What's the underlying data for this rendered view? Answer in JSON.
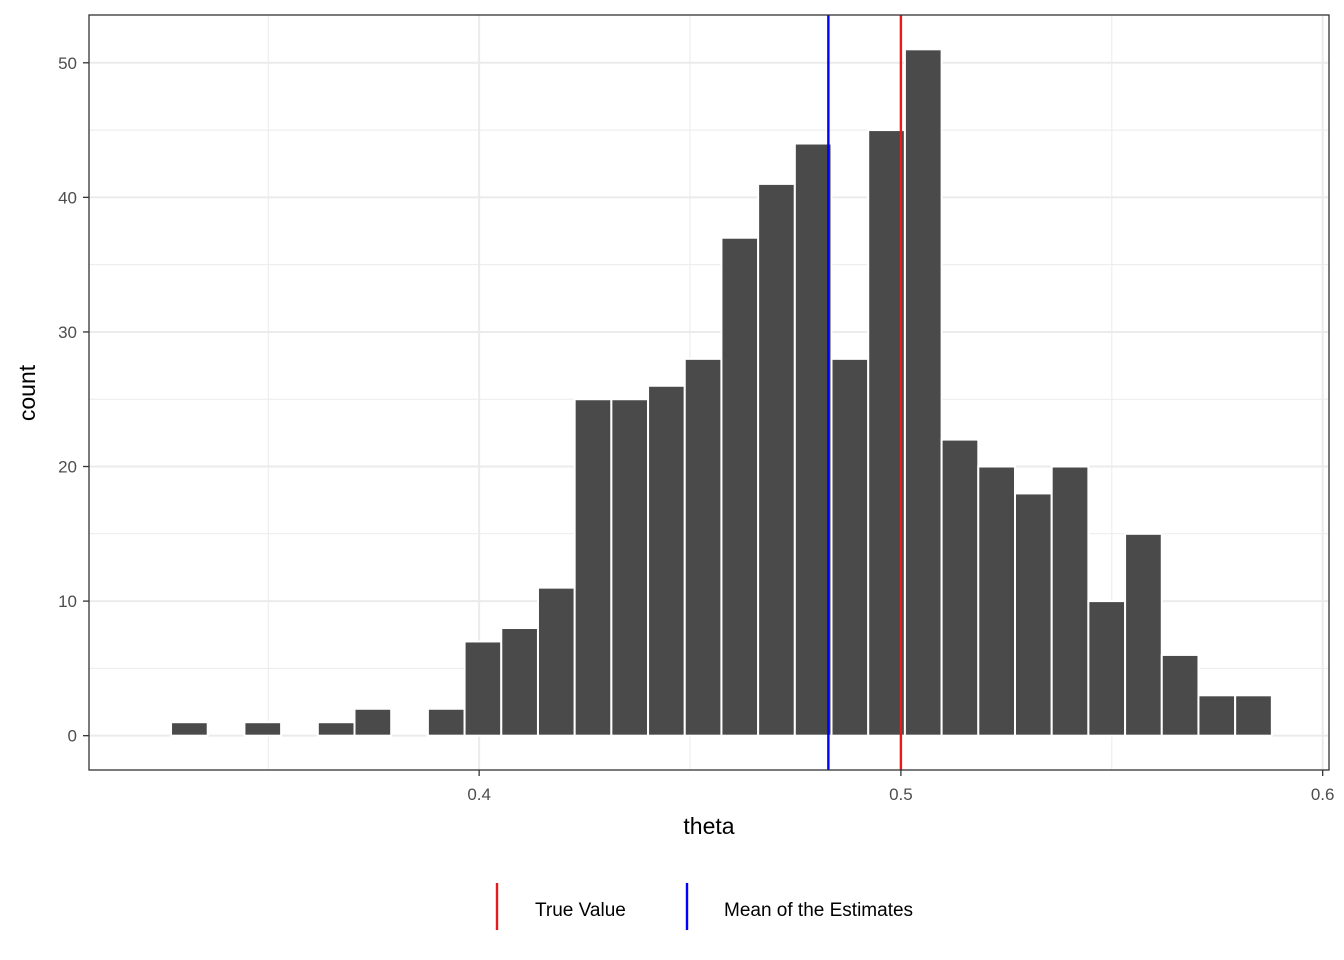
{
  "chart_data": {
    "type": "histogram",
    "title": "",
    "xlabel": "theta",
    "ylabel": "count",
    "xlim": [
      0.3075,
      0.6015
    ],
    "ylim": [
      -2.55,
      53.55
    ],
    "x_ticks": [
      0.4,
      0.5,
      0.6
    ],
    "x_tick_labels": [
      "0.4",
      "0.5",
      "0.6"
    ],
    "y_ticks": [
      0,
      10,
      20,
      30,
      40,
      50
    ],
    "y_tick_labels": [
      "0",
      "10",
      "20",
      "30",
      "40",
      "50"
    ],
    "grid": true,
    "bin_width": 0.0087,
    "bins": [
      {
        "center": 0.3313,
        "count": 1
      },
      {
        "center": 0.34,
        "count": 0
      },
      {
        "center": 0.3487,
        "count": 1
      },
      {
        "center": 0.3574,
        "count": 0
      },
      {
        "center": 0.3661,
        "count": 1
      },
      {
        "center": 0.3748,
        "count": 2
      },
      {
        "center": 0.3835,
        "count": 0
      },
      {
        "center": 0.3922,
        "count": 2
      },
      {
        "center": 0.4009,
        "count": 7
      },
      {
        "center": 0.4096,
        "count": 8
      },
      {
        "center": 0.4183,
        "count": 11
      },
      {
        "center": 0.427,
        "count": 25
      },
      {
        "center": 0.4357,
        "count": 25
      },
      {
        "center": 0.4444,
        "count": 26
      },
      {
        "center": 0.4531,
        "count": 28
      },
      {
        "center": 0.4618,
        "count": 37
      },
      {
        "center": 0.4705,
        "count": 41
      },
      {
        "center": 0.4792,
        "count": 44
      },
      {
        "center": 0.4879,
        "count": 28
      },
      {
        "center": 0.4966,
        "count": 45
      },
      {
        "center": 0.5053,
        "count": 51
      },
      {
        "center": 0.514,
        "count": 22
      },
      {
        "center": 0.5227,
        "count": 20
      },
      {
        "center": 0.5314,
        "count": 18
      },
      {
        "center": 0.5401,
        "count": 20
      },
      {
        "center": 0.5488,
        "count": 10
      },
      {
        "center": 0.5575,
        "count": 15
      },
      {
        "center": 0.5662,
        "count": 6
      },
      {
        "center": 0.5749,
        "count": 3
      },
      {
        "center": 0.5836,
        "count": 3
      }
    ],
    "vlines": [
      {
        "name": "True Value",
        "x": 0.5,
        "color": "#e41a1c"
      },
      {
        "name": "Mean of the Estimates",
        "x": 0.4828,
        "color": "#0000ff"
      }
    ],
    "bar_color": "#4a4a4a",
    "legend_position": "bottom"
  }
}
